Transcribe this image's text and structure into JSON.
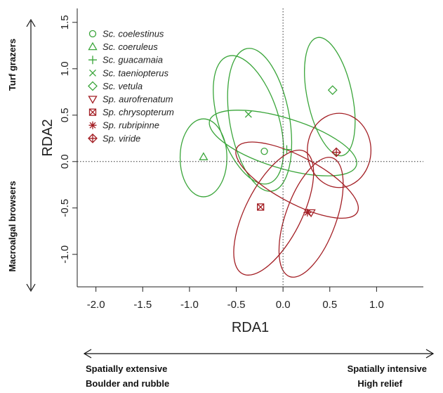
{
  "chart_data": {
    "type": "scatter",
    "xlabel": "RDA1",
    "ylabel": "RDA2",
    "xlim": [
      -2.2,
      1.5
    ],
    "ylim": [
      -1.35,
      1.65
    ],
    "x_ticks": [
      -2.0,
      -1.5,
      -1.0,
      -0.5,
      0.0,
      0.5,
      1.0
    ],
    "y_ticks": [
      -1.0,
      -0.5,
      0.0,
      0.5,
      1.0,
      1.5
    ],
    "grid": false,
    "reference_lines": {
      "x": 0,
      "y": 0,
      "style": "dotted"
    },
    "legend_position": "top-left",
    "colors": {
      "scarus": "#3aa53a",
      "sparisoma": "#a31e24"
    },
    "series": [
      {
        "name": "Sc. coelestinus",
        "genus": "scarus",
        "symbol": "circle",
        "x": -0.2,
        "y": 0.11,
        "ellipse": {
          "cx": -0.25,
          "cy": 0.45,
          "rx": 0.32,
          "ry": 0.78,
          "angle": -10
        }
      },
      {
        "name": "Sc. coeruleus",
        "genus": "scarus",
        "symbol": "triangle-up",
        "x": -0.85,
        "y": 0.05,
        "ellipse": {
          "cx": -0.85,
          "cy": 0.04,
          "rx": 0.25,
          "ry": 0.42,
          "angle": 0
        }
      },
      {
        "name": "Sc. guacamaia",
        "genus": "scarus",
        "symbol": "plus",
        "x": 0.04,
        "y": 0.13,
        "ellipse": {
          "cx": 0.0,
          "cy": 0.2,
          "rx": 0.82,
          "ry": 0.27,
          "angle": 17
        }
      },
      {
        "name": "Sc. taeniopterus",
        "genus": "scarus",
        "symbol": "cross",
        "x": -0.37,
        "y": 0.51,
        "ellipse": {
          "cx": -0.37,
          "cy": 0.45,
          "rx": 0.32,
          "ry": 0.72,
          "angle": -18
        }
      },
      {
        "name": "Sc. vetula",
        "genus": "scarus",
        "symbol": "diamond",
        "x": 0.53,
        "y": 0.77,
        "ellipse": {
          "cx": 0.5,
          "cy": 0.7,
          "rx": 0.24,
          "ry": 0.65,
          "angle": -12
        }
      },
      {
        "name": "Sp. aurofrenatum",
        "genus": "sparisoma",
        "symbol": "triangle-down",
        "x": 0.3,
        "y": -0.55,
        "ellipse": {
          "cx": 0.3,
          "cy": -0.6,
          "rx": 0.27,
          "ry": 0.68,
          "angle": 20
        }
      },
      {
        "name": "Sp. chrysopterum",
        "genus": "sparisoma",
        "symbol": "square-x",
        "x": -0.24,
        "y": -0.49,
        "ellipse": {
          "cx": -0.1,
          "cy": -0.55,
          "rx": 0.3,
          "ry": 0.74,
          "angle": 27
        }
      },
      {
        "name": "Sp. rubripinne",
        "genus": "sparisoma",
        "symbol": "star",
        "x": 0.26,
        "y": -0.55,
        "ellipse": {
          "cx": 0.15,
          "cy": -0.2,
          "rx": 0.73,
          "ry": 0.25,
          "angle": 28
        }
      },
      {
        "name": "Sp. viride",
        "genus": "sparisoma",
        "symbol": "diamond-plus",
        "x": 0.57,
        "y": 0.1,
        "ellipse": {
          "cx": 0.6,
          "cy": 0.12,
          "rx": 0.34,
          "ry": 0.4,
          "angle": 0
        }
      }
    ],
    "side_labels": {
      "top_left": "Turf grazers",
      "bottom_left": "Macroalgal browsers",
      "bottom_left_x": [
        "Spatially extensive",
        "Boulder and rubble"
      ],
      "bottom_right_x": [
        "Spatially intensive",
        "High relief"
      ]
    }
  }
}
